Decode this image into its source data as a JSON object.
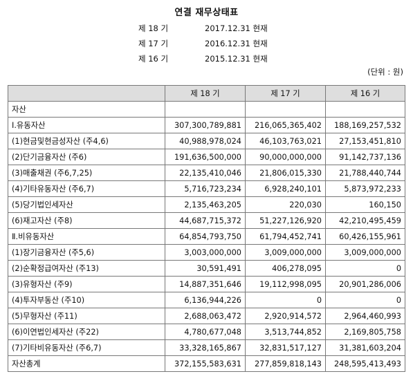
{
  "title": "연결 재무상태표",
  "periods": [
    {
      "label": "제 18 기",
      "date": "2017.12.31 현재"
    },
    {
      "label": "제 17 기",
      "date": "2016.12.31 현재"
    },
    {
      "label": "제 16 기",
      "date": "2015.12.31 현재"
    }
  ],
  "unit": "(단위 : 원)",
  "table": {
    "headers": [
      "",
      "제 18 기",
      "제 17 기",
      "제 16 기"
    ],
    "rows": [
      {
        "label": "자산",
        "level": 0,
        "values": [
          "",
          "",
          ""
        ]
      },
      {
        "label": "Ⅰ.유동자산",
        "level": 1,
        "values": [
          "307,300,789,881",
          "216,065,365,402",
          "188,169,257,532"
        ]
      },
      {
        "label": "(1)현금및현금성자산 (주4,6)",
        "level": 2,
        "values": [
          "40,988,978,024",
          "46,103,763,021",
          "27,153,451,810"
        ]
      },
      {
        "label": "(2)단기금융자산 (주6)",
        "level": 2,
        "values": [
          "191,636,500,000",
          "90,000,000,000",
          "91,142,737,136"
        ]
      },
      {
        "label": "(3)매출채권 (주6,7,25)",
        "level": 2,
        "values": [
          "22,135,410,046",
          "21,806,015,330",
          "21,788,440,744"
        ]
      },
      {
        "label": "(4)기타유동자산 (주6,7)",
        "level": 2,
        "values": [
          "5,716,723,234",
          "6,928,240,101",
          "5,873,972,233"
        ]
      },
      {
        "label": "(5)당기법인세자산",
        "level": 2,
        "values": [
          "2,135,463,205",
          "220,030",
          "160,150"
        ]
      },
      {
        "label": "(6)재고자산 (주8)",
        "level": 2,
        "values": [
          "44,687,715,372",
          "51,227,126,920",
          "42,210,495,459"
        ]
      },
      {
        "label": "Ⅱ.비유동자산",
        "level": 1,
        "values": [
          "64,854,793,750",
          "61,794,452,741",
          "60,426,155,961"
        ]
      },
      {
        "label": "(1)장기금융자산 (주5,6)",
        "level": 2,
        "values": [
          "3,003,000,000",
          "3,009,000,000",
          "3,009,000,000"
        ]
      },
      {
        "label": "(2)순확정급여자산 (주13)",
        "level": 2,
        "values": [
          "30,591,491",
          "406,278,095",
          "0"
        ]
      },
      {
        "label": "(3)유형자산 (주9)",
        "level": 2,
        "values": [
          "14,887,351,646",
          "19,112,998,095",
          "20,901,286,006"
        ]
      },
      {
        "label": "(4)투자부동산 (주10)",
        "level": 2,
        "values": [
          "6,136,944,226",
          "0",
          "0"
        ]
      },
      {
        "label": "(5)무형자산 (주11)",
        "level": 2,
        "values": [
          "2,688,063,472",
          "2,920,914,572",
          "2,964,460,993"
        ]
      },
      {
        "label": "(6)이연법인세자산 (주22)",
        "level": 2,
        "values": [
          "4,780,677,048",
          "3,513,744,852",
          "2,169,805,758"
        ]
      },
      {
        "label": "(7)기타비유동자산 (주6,7)",
        "level": 2,
        "values": [
          "33,328,165,867",
          "32,831,517,127",
          "31,381,603,204"
        ]
      },
      {
        "label": "자산총계",
        "level": "total",
        "values": [
          "372,155,583,631",
          "277,859,818,143",
          "248,595,413,493"
        ]
      }
    ]
  }
}
